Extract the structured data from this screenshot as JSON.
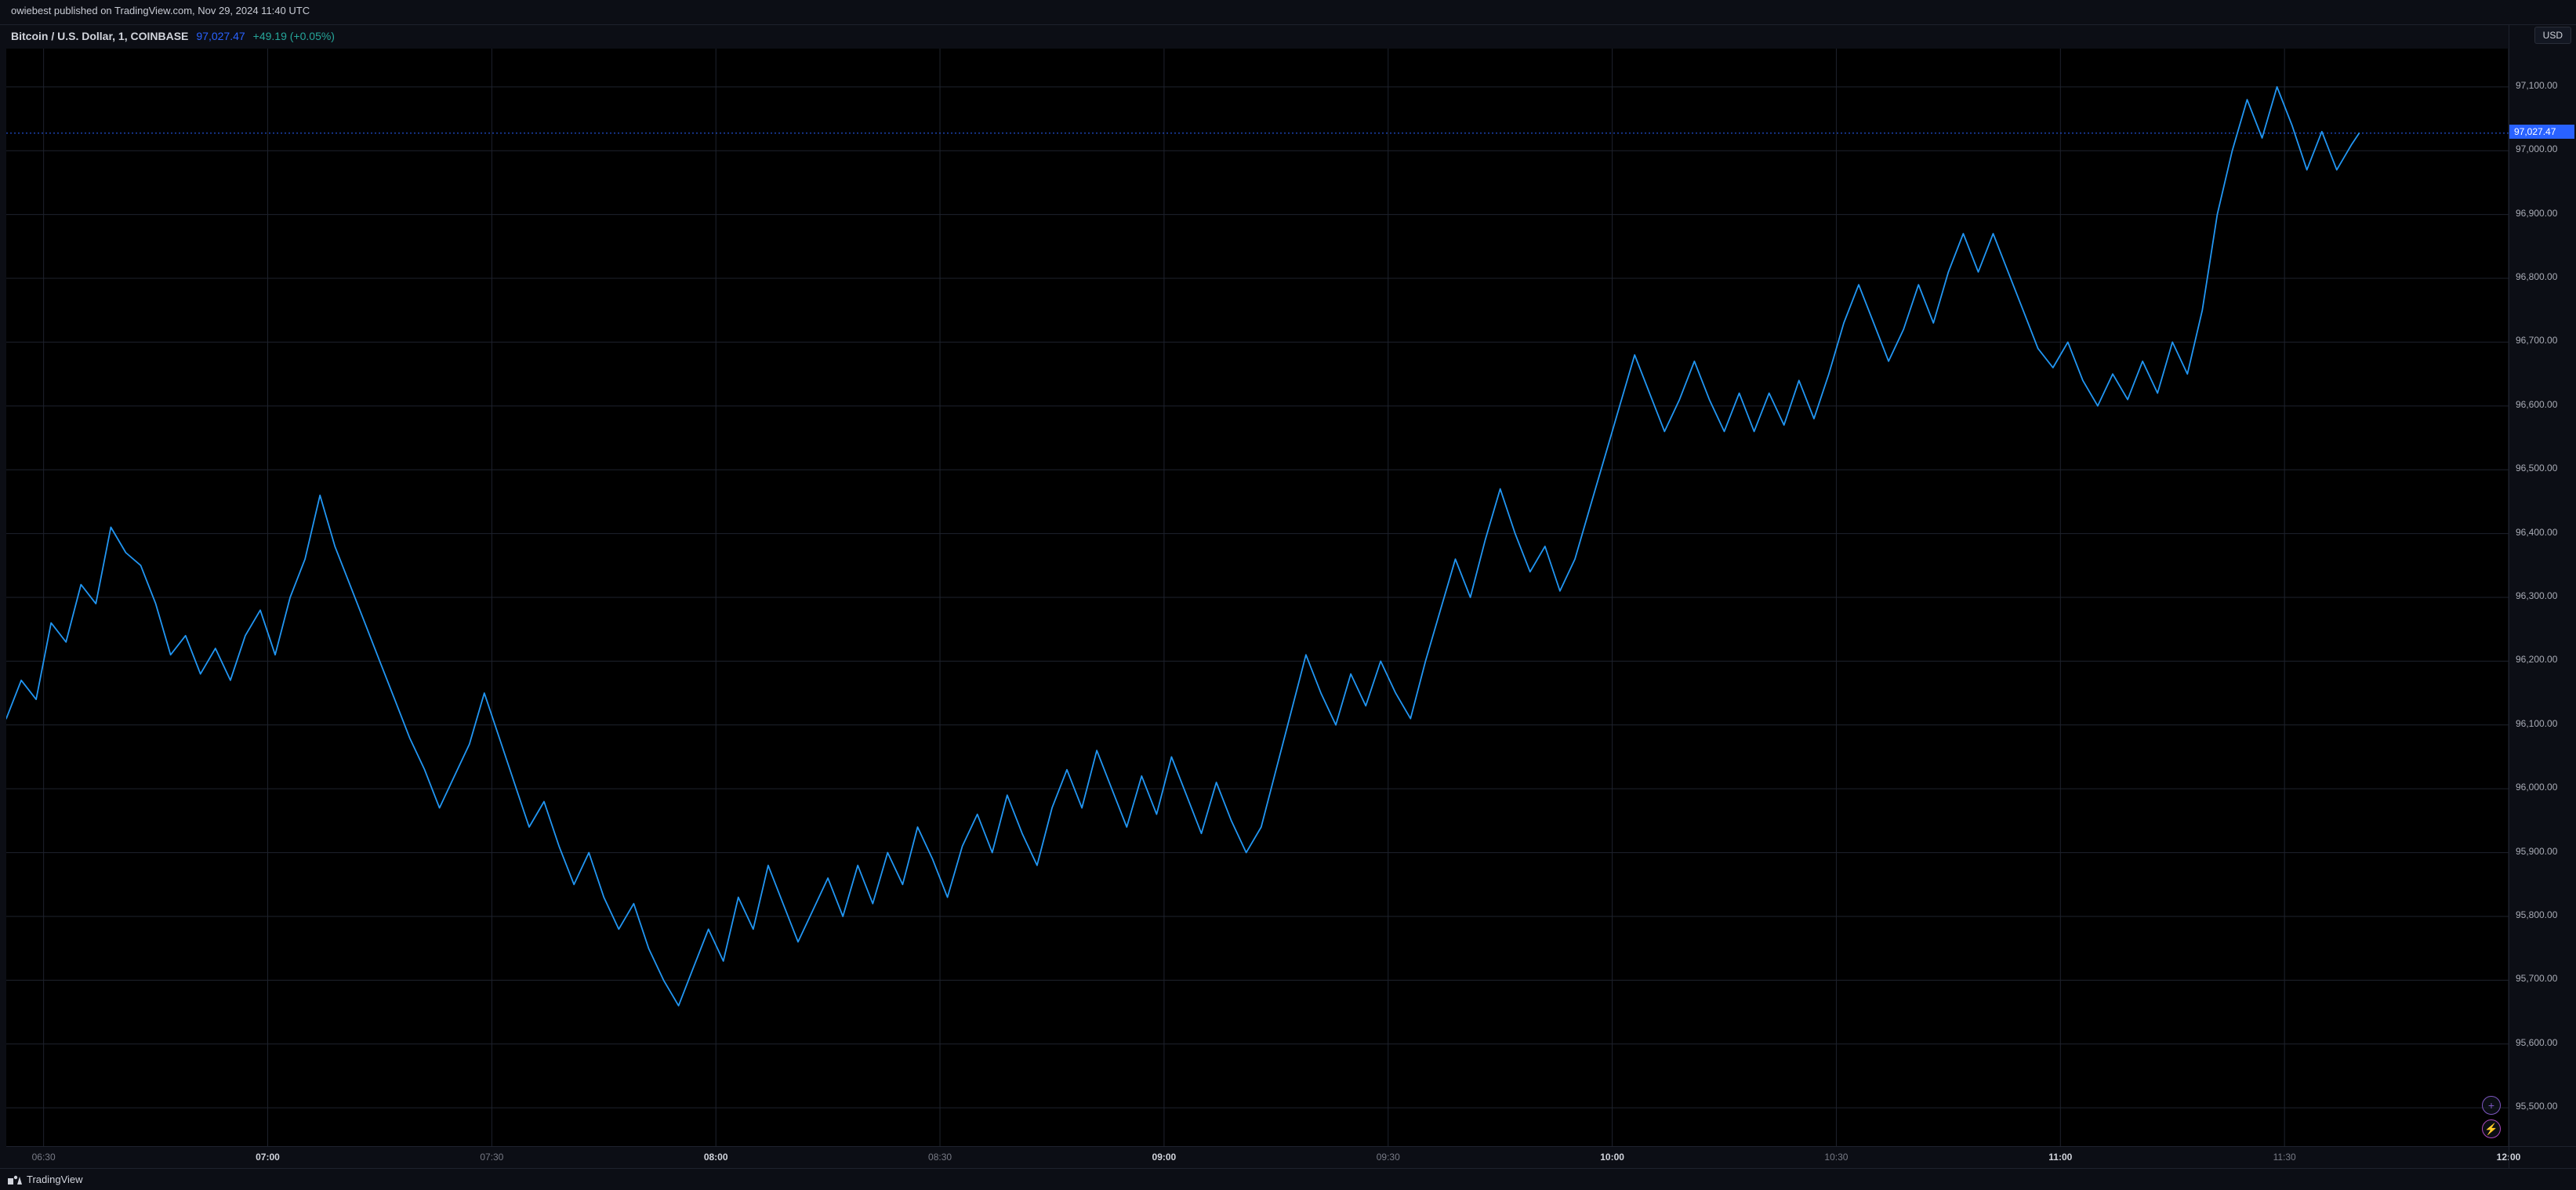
{
  "banner": {
    "text": "owiebest published on TradingView.com, Nov 29, 2024 11:40 UTC"
  },
  "header": {
    "symbol_line": "Bitcoin / U.S. Dollar, 1, COINBASE",
    "price": "97,027.47",
    "change": "+49.19 (+0.05%)",
    "change_positive": true
  },
  "yaxis": {
    "currency": "USD",
    "min": 95500,
    "max": 97100,
    "tick_step": 100,
    "ticks": [
      {
        "v": 97100,
        "label": "97,100.00"
      },
      {
        "v": 97000,
        "label": "97,000.00"
      },
      {
        "v": 96900,
        "label": "96,900.00"
      },
      {
        "v": 96800,
        "label": "96,800.00"
      },
      {
        "v": 96700,
        "label": "96,700.00"
      },
      {
        "v": 96600,
        "label": "96,600.00"
      },
      {
        "v": 96500,
        "label": "96,500.00"
      },
      {
        "v": 96400,
        "label": "96,400.00"
      },
      {
        "v": 96300,
        "label": "96,300.00"
      },
      {
        "v": 96200,
        "label": "96,200.00"
      },
      {
        "v": 96100,
        "label": "96,100.00"
      },
      {
        "v": 96000,
        "label": "96,000.00"
      },
      {
        "v": 95900,
        "label": "95,900.00"
      },
      {
        "v": 95800,
        "label": "95,800.00"
      },
      {
        "v": 95700,
        "label": "95,700.00"
      },
      {
        "v": 95600,
        "label": "95,600.00"
      },
      {
        "v": 95500,
        "label": "95,500.00"
      }
    ],
    "current_price": {
      "v": 97027.47,
      "label": "97,027.47",
      "bg": "#2962ff"
    }
  },
  "xaxis": {
    "min_minutes": 385,
    "max_minutes": 720,
    "ticks": [
      {
        "m": 390,
        "label": "06:30",
        "bold": false
      },
      {
        "m": 420,
        "label": "07:00",
        "bold": true
      },
      {
        "m": 450,
        "label": "07:30",
        "bold": false
      },
      {
        "m": 480,
        "label": "08:00",
        "bold": true
      },
      {
        "m": 510,
        "label": "08:30",
        "bold": false
      },
      {
        "m": 540,
        "label": "09:00",
        "bold": true
      },
      {
        "m": 570,
        "label": "09:30",
        "bold": false
      },
      {
        "m": 600,
        "label": "10:00",
        "bold": true
      },
      {
        "m": 630,
        "label": "10:30",
        "bold": false
      },
      {
        "m": 660,
        "label": "11:00",
        "bold": true
      },
      {
        "m": 690,
        "label": "11:30",
        "bold": false
      },
      {
        "m": 720,
        "label": "12:00",
        "bold": true
      }
    ]
  },
  "chart": {
    "type": "line",
    "background_color": "#000000",
    "grid_color": "#1e222d",
    "line_color": "#2196f3",
    "line_width": 1.8,
    "price_line_color": "#2962ff",
    "ymin_plot": 95440,
    "ymax_plot": 97160,
    "series": [
      {
        "m": 385,
        "v": 96110
      },
      {
        "m": 387,
        "v": 96170
      },
      {
        "m": 389,
        "v": 96140
      },
      {
        "m": 391,
        "v": 96260
      },
      {
        "m": 393,
        "v": 96230
      },
      {
        "m": 395,
        "v": 96320
      },
      {
        "m": 397,
        "v": 96290
      },
      {
        "m": 399,
        "v": 96410
      },
      {
        "m": 401,
        "v": 96370
      },
      {
        "m": 403,
        "v": 96350
      },
      {
        "m": 405,
        "v": 96290
      },
      {
        "m": 407,
        "v": 96210
      },
      {
        "m": 409,
        "v": 96240
      },
      {
        "m": 411,
        "v": 96180
      },
      {
        "m": 413,
        "v": 96220
      },
      {
        "m": 415,
        "v": 96170
      },
      {
        "m": 417,
        "v": 96240
      },
      {
        "m": 419,
        "v": 96280
      },
      {
        "m": 421,
        "v": 96210
      },
      {
        "m": 423,
        "v": 96300
      },
      {
        "m": 425,
        "v": 96360
      },
      {
        "m": 427,
        "v": 96460
      },
      {
        "m": 429,
        "v": 96380
      },
      {
        "m": 431,
        "v": 96320
      },
      {
        "m": 433,
        "v": 96260
      },
      {
        "m": 435,
        "v": 96200
      },
      {
        "m": 437,
        "v": 96140
      },
      {
        "m": 439,
        "v": 96080
      },
      {
        "m": 441,
        "v": 96030
      },
      {
        "m": 443,
        "v": 95970
      },
      {
        "m": 445,
        "v": 96020
      },
      {
        "m": 447,
        "v": 96070
      },
      {
        "m": 449,
        "v": 96150
      },
      {
        "m": 451,
        "v": 96080
      },
      {
        "m": 453,
        "v": 96010
      },
      {
        "m": 455,
        "v": 95940
      },
      {
        "m": 457,
        "v": 95980
      },
      {
        "m": 459,
        "v": 95910
      },
      {
        "m": 461,
        "v": 95850
      },
      {
        "m": 463,
        "v": 95900
      },
      {
        "m": 465,
        "v": 95830
      },
      {
        "m": 467,
        "v": 95780
      },
      {
        "m": 469,
        "v": 95820
      },
      {
        "m": 471,
        "v": 95750
      },
      {
        "m": 473,
        "v": 95700
      },
      {
        "m": 475,
        "v": 95660
      },
      {
        "m": 477,
        "v": 95720
      },
      {
        "m": 479,
        "v": 95780
      },
      {
        "m": 481,
        "v": 95730
      },
      {
        "m": 483,
        "v": 95830
      },
      {
        "m": 485,
        "v": 95780
      },
      {
        "m": 487,
        "v": 95880
      },
      {
        "m": 489,
        "v": 95820
      },
      {
        "m": 491,
        "v": 95760
      },
      {
        "m": 493,
        "v": 95810
      },
      {
        "m": 495,
        "v": 95860
      },
      {
        "m": 497,
        "v": 95800
      },
      {
        "m": 499,
        "v": 95880
      },
      {
        "m": 501,
        "v": 95820
      },
      {
        "m": 503,
        "v": 95900
      },
      {
        "m": 505,
        "v": 95850
      },
      {
        "m": 507,
        "v": 95940
      },
      {
        "m": 509,
        "v": 95890
      },
      {
        "m": 511,
        "v": 95830
      },
      {
        "m": 513,
        "v": 95910
      },
      {
        "m": 515,
        "v": 95960
      },
      {
        "m": 517,
        "v": 95900
      },
      {
        "m": 519,
        "v": 95990
      },
      {
        "m": 521,
        "v": 95930
      },
      {
        "m": 523,
        "v": 95880
      },
      {
        "m": 525,
        "v": 95970
      },
      {
        "m": 527,
        "v": 96030
      },
      {
        "m": 529,
        "v": 95970
      },
      {
        "m": 531,
        "v": 96060
      },
      {
        "m": 533,
        "v": 96000
      },
      {
        "m": 535,
        "v": 95940
      },
      {
        "m": 537,
        "v": 96020
      },
      {
        "m": 539,
        "v": 95960
      },
      {
        "m": 541,
        "v": 96050
      },
      {
        "m": 543,
        "v": 95990
      },
      {
        "m": 545,
        "v": 95930
      },
      {
        "m": 547,
        "v": 96010
      },
      {
        "m": 549,
        "v": 95950
      },
      {
        "m": 551,
        "v": 95900
      },
      {
        "m": 553,
        "v": 95940
      },
      {
        "m": 555,
        "v": 96030
      },
      {
        "m": 557,
        "v": 96120
      },
      {
        "m": 559,
        "v": 96210
      },
      {
        "m": 561,
        "v": 96150
      },
      {
        "m": 563,
        "v": 96100
      },
      {
        "m": 565,
        "v": 96180
      },
      {
        "m": 567,
        "v": 96130
      },
      {
        "m": 569,
        "v": 96200
      },
      {
        "m": 571,
        "v": 96150
      },
      {
        "m": 573,
        "v": 96110
      },
      {
        "m": 575,
        "v": 96200
      },
      {
        "m": 577,
        "v": 96280
      },
      {
        "m": 579,
        "v": 96360
      },
      {
        "m": 581,
        "v": 96300
      },
      {
        "m": 583,
        "v": 96390
      },
      {
        "m": 585,
        "v": 96470
      },
      {
        "m": 587,
        "v": 96400
      },
      {
        "m": 589,
        "v": 96340
      },
      {
        "m": 591,
        "v": 96380
      },
      {
        "m": 593,
        "v": 96310
      },
      {
        "m": 595,
        "v": 96360
      },
      {
        "m": 597,
        "v": 96440
      },
      {
        "m": 599,
        "v": 96520
      },
      {
        "m": 601,
        "v": 96600
      },
      {
        "m": 603,
        "v": 96680
      },
      {
        "m": 605,
        "v": 96620
      },
      {
        "m": 607,
        "v": 96560
      },
      {
        "m": 609,
        "v": 96610
      },
      {
        "m": 611,
        "v": 96670
      },
      {
        "m": 613,
        "v": 96610
      },
      {
        "m": 615,
        "v": 96560
      },
      {
        "m": 617,
        "v": 96620
      },
      {
        "m": 619,
        "v": 96560
      },
      {
        "m": 621,
        "v": 96620
      },
      {
        "m": 623,
        "v": 96570
      },
      {
        "m": 625,
        "v": 96640
      },
      {
        "m": 627,
        "v": 96580
      },
      {
        "m": 629,
        "v": 96650
      },
      {
        "m": 631,
        "v": 96730
      },
      {
        "m": 633,
        "v": 96790
      },
      {
        "m": 635,
        "v": 96730
      },
      {
        "m": 637,
        "v": 96670
      },
      {
        "m": 639,
        "v": 96720
      },
      {
        "m": 641,
        "v": 96790
      },
      {
        "m": 643,
        "v": 96730
      },
      {
        "m": 645,
        "v": 96810
      },
      {
        "m": 647,
        "v": 96870
      },
      {
        "m": 649,
        "v": 96810
      },
      {
        "m": 651,
        "v": 96870
      },
      {
        "m": 653,
        "v": 96810
      },
      {
        "m": 655,
        "v": 96750
      },
      {
        "m": 657,
        "v": 96690
      },
      {
        "m": 659,
        "v": 96660
      },
      {
        "m": 661,
        "v": 96700
      },
      {
        "m": 663,
        "v": 96640
      },
      {
        "m": 665,
        "v": 96600
      },
      {
        "m": 667,
        "v": 96650
      },
      {
        "m": 669,
        "v": 96610
      },
      {
        "m": 671,
        "v": 96670
      },
      {
        "m": 673,
        "v": 96620
      },
      {
        "m": 675,
        "v": 96700
      },
      {
        "m": 677,
        "v": 96650
      },
      {
        "m": 679,
        "v": 96750
      },
      {
        "m": 681,
        "v": 96900
      },
      {
        "m": 683,
        "v": 97000
      },
      {
        "m": 685,
        "v": 97080
      },
      {
        "m": 687,
        "v": 97020
      },
      {
        "m": 689,
        "v": 97100
      },
      {
        "m": 691,
        "v": 97040
      },
      {
        "m": 693,
        "v": 96970
      },
      {
        "m": 695,
        "v": 97030
      },
      {
        "m": 697,
        "v": 96970
      },
      {
        "m": 699,
        "v": 97010
      },
      {
        "m": 700,
        "v": 97027.47
      }
    ]
  },
  "footer": {
    "brand": "TradingView"
  },
  "buttons": {
    "plus": "+",
    "bolt": "⚡"
  }
}
